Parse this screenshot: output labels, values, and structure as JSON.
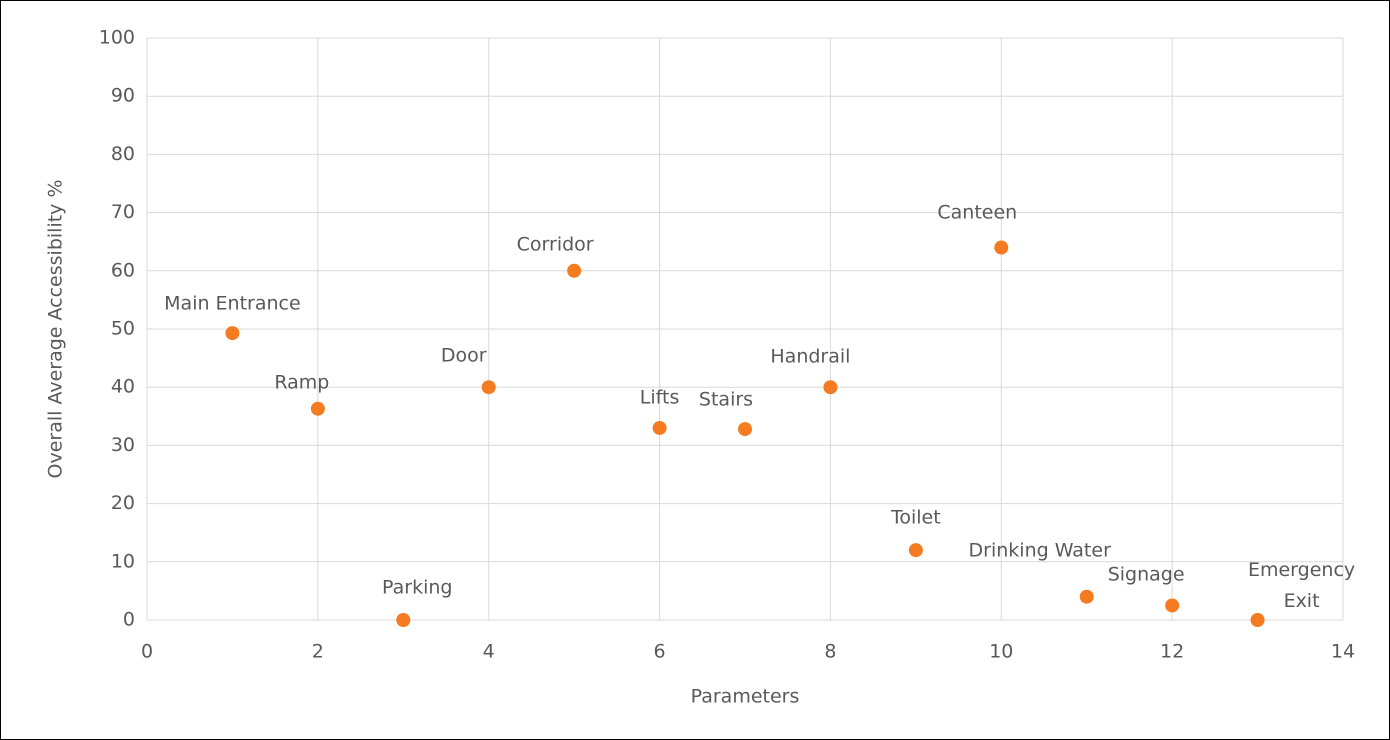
{
  "chart_data": {
    "type": "scatter",
    "x_label": "Parameters",
    "y_label": "Overall Average Accessibility %",
    "x": [
      1,
      2,
      3,
      4,
      5,
      6,
      7,
      8,
      9,
      10,
      11,
      12,
      13
    ],
    "values": [
      49.3,
      36.3,
      0,
      40,
      60,
      33,
      32.8,
      40,
      12,
      64,
      4,
      2.5,
      0
    ],
    "point_labels": [
      "Main Entrance",
      "Ramp",
      "Parking",
      "Door",
      "Corridor",
      "Lifts",
      "Stairs",
      "Handrail",
      "Toilet",
      "Canteen",
      "Drinking Water",
      "Signage",
      "Emergency Exit"
    ],
    "color": "#f47b20",
    "xlim": [
      0,
      14
    ],
    "xticks": [
      0,
      2,
      4,
      6,
      8,
      10,
      12,
      14
    ],
    "ylim": [
      0,
      100
    ],
    "yticks": [
      0,
      10,
      20,
      30,
      40,
      50,
      60,
      70,
      80,
      90,
      100
    ],
    "grid": true
  }
}
